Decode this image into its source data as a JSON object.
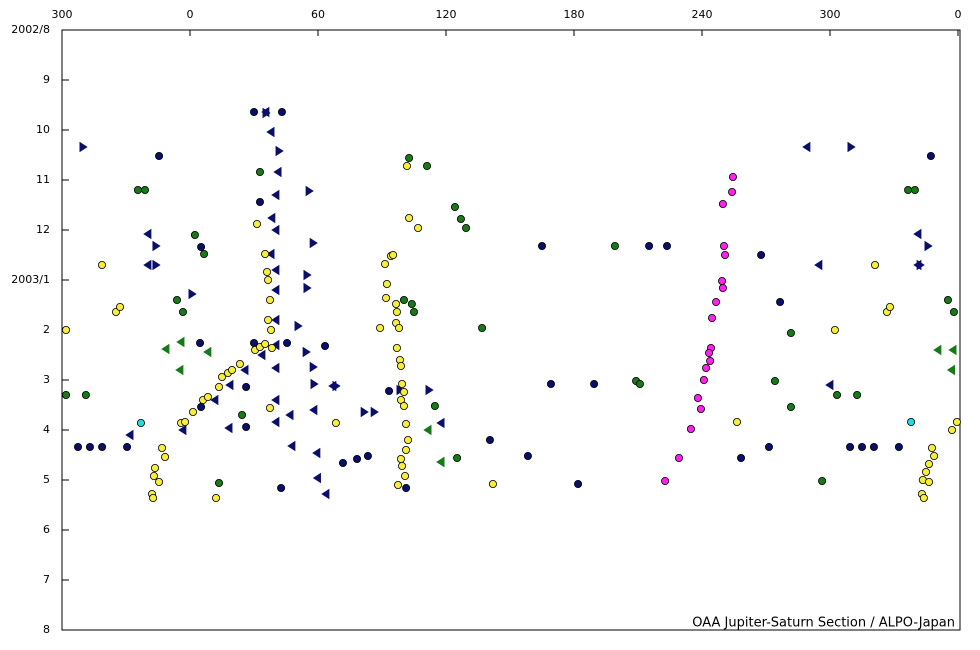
{
  "chart_data": {
    "type": "scatter",
    "credit": "OAA Jupiter-Saturn Section / ALPO-Japan",
    "xlim": [
      -60,
      360
    ],
    "xticks": [
      {
        "value": -60,
        "label": "300"
      },
      0,
      60,
      120,
      180,
      240,
      300,
      {
        "value": 360,
        "label": "0"
      }
    ],
    "ylim": [
      12,
      0
    ],
    "yticks": [
      {
        "value": 0,
        "label": "2002/8"
      },
      {
        "value": 1,
        "label": "9"
      },
      {
        "value": 2,
        "label": "10"
      },
      {
        "value": 3,
        "label": "11"
      },
      {
        "value": 4,
        "label": "12"
      },
      {
        "value": 5,
        "label": "2003/1"
      },
      {
        "value": 6,
        "label": "2"
      },
      {
        "value": 7,
        "label": "3"
      },
      {
        "value": 8,
        "label": "4"
      },
      {
        "value": 9,
        "label": "5"
      },
      {
        "value": 10,
        "label": "6"
      },
      {
        "value": 11,
        "label": "7"
      },
      {
        "value": 12,
        "label": "8"
      }
    ],
    "series": [
      {
        "color": "#ff22ee",
        "marker": "circle",
        "x": [
          254.5,
          249.8,
          254.1,
          250.3,
          250.8,
          249.4,
          249.8,
          246.6,
          244.7,
          244.2,
          243.3,
          243.8,
          241.9,
          240.9,
          238.1,
          239.5,
          234.8,
          229.2,
          222.7
        ],
        "values": [
          2.94,
          3.48,
          3.24,
          4.32,
          4.5,
          5.02,
          5.16,
          5.44,
          5.76,
          6.36,
          6.46,
          6.62,
          6.76,
          7.0,
          7.36,
          7.58,
          7.98,
          8.56,
          9.02
        ]
      },
      {
        "color": "#22dddd",
        "marker": "circle",
        "x": [
          -23,
          338
        ],
        "values": [
          7.86,
          7.84
        ]
      },
      {
        "color": "#167a16",
        "marker": "circle",
        "x": [
          -24.4,
          -21.1,
          32.8,
          2.3,
          6.6,
          -6.1,
          -3.3,
          -58.1,
          -48.8,
          24.4,
          13.6,
          102.7,
          111.1,
          124.2,
          127,
          129.4,
          100.3,
          104,
          105,
          136.9,
          114.8,
          125.2,
          199.2,
          209.1,
          210.9,
          281.7,
          274.2,
          281.7,
          303.3,
          312.7,
          296.3,
          336.6,
          339.8,
          355.3,
          358.1
        ],
        "values": [
          3.2,
          3.2,
          2.84,
          4.1,
          4.48,
          5.4,
          5.64,
          7.3,
          7.3,
          7.7,
          9.06,
          2.56,
          2.72,
          3.54,
          3.78,
          3.96,
          5.4,
          5.48,
          5.64,
          5.96,
          7.52,
          8.56,
          4.32,
          7.02,
          7.08,
          6.06,
          7.02,
          7.54,
          7.3,
          7.3,
          9.02,
          3.2,
          3.2,
          5.4,
          5.64
        ]
      },
      {
        "color": "#0a0f6a",
        "marker": "circle",
        "x": [
          -14.5,
          -52.5,
          -46.9,
          -41.2,
          -29.5,
          5.2,
          4.7,
          5.2,
          26.3,
          26.3,
          30,
          32.8,
          30,
          43.1,
          45.5,
          42.7,
          63.3,
          71.7,
          78.3,
          83.4,
          93.3,
          101.3,
          140.6,
          158.4,
          169.2,
          165,
          181.9,
          189.4,
          215.2,
          223.6,
          267.7,
          276.6,
          271.4,
          258.3,
          309.4,
          315,
          320.6,
          332.3,
          347.3
        ],
        "values": [
          2.52,
          8.34,
          8.34,
          8.34,
          8.34,
          4.34,
          6.26,
          7.54,
          7.94,
          7.14,
          6.26,
          3.44,
          1.64,
          1.64,
          6.26,
          9.16,
          6.32,
          8.66,
          8.58,
          8.52,
          7.22,
          9.16,
          8.2,
          8.52,
          7.08,
          4.32,
          9.08,
          7.08,
          4.32,
          4.32,
          4.5,
          5.44,
          8.34,
          8.56,
          8.34,
          8.34,
          8.34,
          8.34,
          2.52
        ]
      },
      {
        "color": "#0a0f6a",
        "marker": "triangle-right",
        "x": [
          -50.2,
          -16,
          -16,
          0.9,
          35.6,
          41.7,
          55.8,
          57.7,
          54.8,
          54.8,
          50.6,
          54.4,
          57.7,
          58.1,
          68.4,
          81.6,
          86.3,
          98.4,
          112,
          309.8,
          345.9,
          342.2
        ],
        "values": [
          2.34,
          4.32,
          4.7,
          5.28,
          1.66,
          2.42,
          3.22,
          4.26,
          4.9,
          5.16,
          5.92,
          6.44,
          6.74,
          7.08,
          7.12,
          7.64,
          7.64,
          7.2,
          7.2,
          2.34,
          4.32,
          4.7
        ]
      },
      {
        "color": "#0a0f6a",
        "marker": "triangle-left",
        "x": [
          -19.7,
          -19.7,
          -3.3,
          -28.1,
          35.6,
          38,
          41.3,
          38.4,
          38,
          33.75,
          46.9,
          47.8,
          59.5,
          59.8,
          63.75,
          58.1,
          67,
          18.3,
          117.7,
          117.7,
          289.2,
          294.8,
          300,
          341.25,
          341.25,
          40.3,
          40.3,
          40.3,
          40.3,
          40.3,
          40.3,
          40.3,
          40.3,
          40.3,
          11.7,
          18.75,
          25.8
        ],
        "values": [
          4.08,
          4.7,
          8.0,
          8.1,
          1.64,
          2.04,
          2.84,
          3.76,
          4.48,
          6.5,
          7.7,
          8.32,
          8.46,
          8.96,
          9.28,
          7.6,
          7.12,
          7.96,
          7.86,
          8.64,
          2.34,
          4.7,
          7.1,
          4.08,
          4.7,
          3.3,
          4.0,
          4.8,
          5.2,
          5.8,
          6.3,
          6.76,
          7.4,
          7.84,
          7.4,
          7.1,
          6.8
        ]
      },
      {
        "color": "#167a16",
        "marker": "triangle-left",
        "x": [
          -11.25,
          -4.2,
          -4.7,
          8.4,
          111.6,
          117.7,
          357.7,
          350.6,
          357
        ],
        "values": [
          6.38,
          6.24,
          6.8,
          6.44,
          8.0,
          8.64,
          6.4,
          6.4,
          6.8
        ]
      },
      {
        "color": "#f7ee3a",
        "marker": "circle",
        "x": [
          -58.1,
          -41.25,
          -34.7,
          -32.8,
          -13.1,
          -11.7,
          -16.4,
          -16.9,
          -14.5,
          -17.8,
          -17.3,
          -4.2,
          -2.3,
          1.4,
          6.1,
          8.4,
          13.6,
          15,
          17.8,
          19.7,
          23.4,
          30.5,
          32.8,
          35.2,
          31.4,
          35.2,
          36.1,
          36.6,
          37.5,
          36.6,
          38,
          38.4,
          37.5,
          12.2,
          68.4,
          91.4,
          94.2,
          92.3,
          91.9,
          96.6,
          97,
          96.6,
          98,
          97,
          98.4,
          98.9,
          99.4,
          100.3,
          98.9,
          100.3,
          101.25,
          102.2,
          101.25,
          98.9,
          99.4,
          100.8,
          97.5,
          95.2,
          89.1,
          101.7,
          102.7,
          106.9,
          142,
          256.4,
          302.3,
          321.1,
          326.7,
          328.1,
          347.8,
          348.8,
          346.4,
          345,
          343.5,
          346.4,
          343.1,
          344,
          357.2,
          359.5
        ],
        "values": [
          6.0,
          4.7,
          5.64,
          5.54,
          8.36,
          8.54,
          8.76,
          8.92,
          9.04,
          9.28,
          9.36,
          7.86,
          7.84,
          7.64,
          7.4,
          7.34,
          7.14,
          6.94,
          6.86,
          6.8,
          6.68,
          6.4,
          6.34,
          6.28,
          3.88,
          4.48,
          4.84,
          5.0,
          5.4,
          5.8,
          6.0,
          6.36,
          7.56,
          9.36,
          7.86,
          4.68,
          4.52,
          5.08,
          5.36,
          5.48,
          5.64,
          5.86,
          5.96,
          6.36,
          6.6,
          6.72,
          7.08,
          7.24,
          7.4,
          7.52,
          7.88,
          8.2,
          8.4,
          8.58,
          8.72,
          8.92,
          9.1,
          4.5,
          5.96,
          2.72,
          3.76,
          3.96,
          9.08,
          7.84,
          6.0,
          4.7,
          5.64,
          5.54,
          8.36,
          8.52,
          8.68,
          8.84,
          9.0,
          9.04,
          9.28,
          9.36,
          8.0,
          7.84
        ]
      }
    ]
  }
}
